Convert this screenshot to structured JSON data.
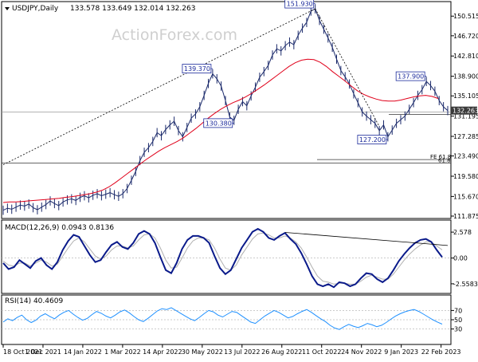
{
  "chart_data": {
    "type": "line",
    "title": "USDJPY,Daily",
    "ohlc_header": "133.578 133.649 132.014 132.263",
    "watermark": "ActionForex.com",
    "x_tick_labels": [
      "18 Oct 2021",
      "1 Dec 2021",
      "14 Jan 2022",
      "1 Mar 2022",
      "14 Apr 2022",
      "30 May 2022",
      "13 Jul 2022",
      "26 Aug 2022",
      "11 Oct 2022",
      "24 Nov 2022",
      "9 Jan 2023",
      "22 Feb 2023"
    ],
    "price_panel": {
      "y_ticks": [
        "150.515",
        "146.720",
        "142.810",
        "138.900",
        "135.105",
        "131.195",
        "127.285",
        "123.490",
        "119.580",
        "115.670",
        "111.875"
      ],
      "ylim": [
        111.875,
        152.4
      ],
      "current_price": "132.263",
      "current_value": 132.263,
      "close": [
        113.0,
        113.4,
        113.2,
        113.6,
        114.0,
        113.8,
        114.2,
        113.5,
        113.1,
        113.6,
        114.1,
        114.8,
        114.3,
        113.9,
        114.6,
        115.0,
        115.2,
        114.9,
        115.5,
        115.8,
        115.4,
        115.9,
        116.2,
        115.8,
        116.1,
        116.4,
        116.0,
        115.7,
        116.2,
        117.2,
        118.8,
        120.5,
        122.6,
        124.2,
        125.1,
        126.3,
        128.0,
        127.4,
        128.6,
        129.5,
        130.2,
        128.4,
        127.2,
        129.0,
        130.8,
        131.6,
        133.0,
        135.2,
        137.5,
        139.37,
        138.4,
        137.0,
        134.2,
        131.0,
        130.38,
        132.5,
        134.0,
        133.2,
        135.1,
        136.8,
        138.7,
        139.8,
        141.0,
        143.0,
        144.2,
        143.8,
        144.8,
        145.5,
        145.0,
        146.8,
        148.2,
        149.3,
        151.5,
        151.93,
        149.7,
        148.0,
        146.3,
        144.5,
        142.2,
        140.0,
        138.8,
        137.4,
        135.5,
        133.8,
        132.0,
        131.2,
        130.5,
        129.8,
        128.4,
        129.5,
        127.2,
        128.5,
        129.8,
        130.5,
        131.2,
        132.5,
        133.8,
        135.2,
        136.3,
        137.9,
        137.1,
        136.0,
        134.2,
        133.0,
        132.263
      ],
      "sma": [
        114.5,
        114.6,
        114.6,
        114.7,
        114.8,
        114.9,
        115.0,
        115.1,
        115.2,
        115.3,
        115.5,
        115.6,
        115.8,
        116.0,
        116.2,
        116.5,
        116.9,
        117.5,
        118.3,
        119.2,
        120.1,
        121.0,
        121.9,
        122.8,
        123.6,
        124.4,
        125.1,
        125.7,
        126.3,
        127.0,
        127.9,
        128.8,
        129.8,
        130.8,
        131.7,
        132.5,
        133.2,
        133.8,
        134.3,
        134.9,
        135.6,
        136.4,
        137.2,
        138.1,
        139.0,
        139.9,
        140.8,
        141.5,
        142.0,
        142.2,
        142.1,
        141.6,
        140.8,
        139.8,
        138.9,
        138.0,
        137.0,
        136.1,
        135.4,
        134.9,
        134.5,
        134.2,
        134.1,
        134.1,
        134.3,
        134.6,
        134.9,
        135.1,
        135.2,
        135.0,
        134.6
      ],
      "annotations": [
        {
          "label": "151.930",
          "x_index": 73,
          "value": 151.93
        },
        {
          "label": "139.370",
          "x_index": 49,
          "value": 139.37
        },
        {
          "label": "130.380",
          "x_index": 54,
          "value": 130.38
        },
        {
          "label": "137.900",
          "x_index": 99,
          "value": 137.9
        },
        {
          "label": "127.200",
          "x_index": 90,
          "value": 127.2
        }
      ],
      "level_labels": [
        "FE 61.8",
        "61.8"
      ],
      "fe_level": 122.8,
      "fib_level": 122.1,
      "support_level": 131.5,
      "hline_level": 132.0
    },
    "macd_panel": {
      "label": "MACD(12,26,9) 0.0943 0.8136",
      "y_ticks": [
        "2.578",
        "0.00",
        "-2.5583"
      ],
      "ylim": [
        -3.2,
        3.3
      ],
      "macd": [
        -0.5,
        -1.1,
        -0.9,
        -0.2,
        -0.6,
        -1.0,
        -0.3,
        0.0,
        -0.7,
        -1.1,
        -0.4,
        0.8,
        1.7,
        2.3,
        2.1,
        1.2,
        0.3,
        -0.4,
        -0.2,
        0.6,
        1.3,
        1.6,
        1.1,
        0.9,
        1.5,
        2.4,
        2.7,
        2.4,
        1.5,
        0.1,
        -1.2,
        -1.5,
        -0.5,
        0.9,
        1.8,
        2.2,
        2.2,
        2.0,
        1.5,
        0.2,
        -1.0,
        -1.6,
        -1.2,
        -0.1,
        1.0,
        1.8,
        2.6,
        2.9,
        2.6,
        2.0,
        1.8,
        2.2,
        2.5,
        1.9,
        1.4,
        0.5,
        -0.6,
        -1.8,
        -2.6,
        -2.8,
        -2.6,
        -2.9,
        -2.4,
        -2.5,
        -2.8,
        -2.6,
        -2.0,
        -1.5,
        -1.6,
        -2.1,
        -2.4,
        -2.0,
        -1.2,
        -0.3,
        0.4,
        1.0,
        1.5,
        1.8,
        1.9,
        1.6,
        0.8,
        0.09
      ],
      "signal": [
        -0.3,
        -0.7,
        -0.8,
        -0.5,
        -0.5,
        -0.8,
        -0.5,
        -0.2,
        -0.4,
        -0.8,
        -0.6,
        0.2,
        1.0,
        1.7,
        2.0,
        1.6,
        0.9,
        0.2,
        -0.1,
        0.2,
        0.8,
        1.2,
        1.2,
        1.0,
        1.2,
        1.8,
        2.3,
        2.4,
        2.0,
        1.0,
        -0.2,
        -1.0,
        -0.9,
        0.0,
        1.0,
        1.7,
        2.0,
        2.0,
        1.8,
        1.0,
        -0.1,
        -1.0,
        -1.2,
        -0.7,
        0.3,
        1.1,
        1.9,
        2.4,
        2.5,
        2.3,
        2.0,
        2.0,
        2.2,
        2.0,
        1.6,
        1.0,
        0.1,
        -0.9,
        -1.8,
        -2.3,
        -2.4,
        -2.6,
        -2.5,
        -2.5,
        -2.6,
        -2.6,
        -2.3,
        -1.9,
        -1.7,
        -1.9,
        -2.1,
        -2.1,
        -1.6,
        -0.9,
        -0.2,
        0.4,
        0.9,
        1.3,
        1.6,
        1.6,
        1.2,
        0.81
      ]
    },
    "rsi_panel": {
      "label": "RSI(14) 40.4609",
      "y_ticks": [
        "70",
        "50",
        "30"
      ],
      "ylim": [
        0,
        100
      ],
      "values": [
        45,
        52,
        48,
        55,
        60,
        50,
        44,
        49,
        58,
        63,
        57,
        52,
        60,
        66,
        70,
        62,
        55,
        49,
        53,
        61,
        68,
        64,
        58,
        54,
        60,
        67,
        71,
        65,
        57,
        50,
        46,
        53,
        61,
        69,
        74,
        72,
        76,
        70,
        64,
        58,
        52,
        48,
        55,
        63,
        70,
        67,
        60,
        56,
        62,
        68,
        66,
        59,
        52,
        45,
        42,
        50,
        58,
        64,
        70,
        66,
        60,
        54,
        57,
        63,
        68,
        72,
        66,
        59,
        52,
        46,
        38,
        32,
        29,
        35,
        40,
        36,
        33,
        37,
        42,
        39,
        35,
        38,
        44,
        51,
        58,
        63,
        67,
        70,
        72,
        68,
        62,
        56,
        50,
        45,
        40.46
      ]
    }
  }
}
